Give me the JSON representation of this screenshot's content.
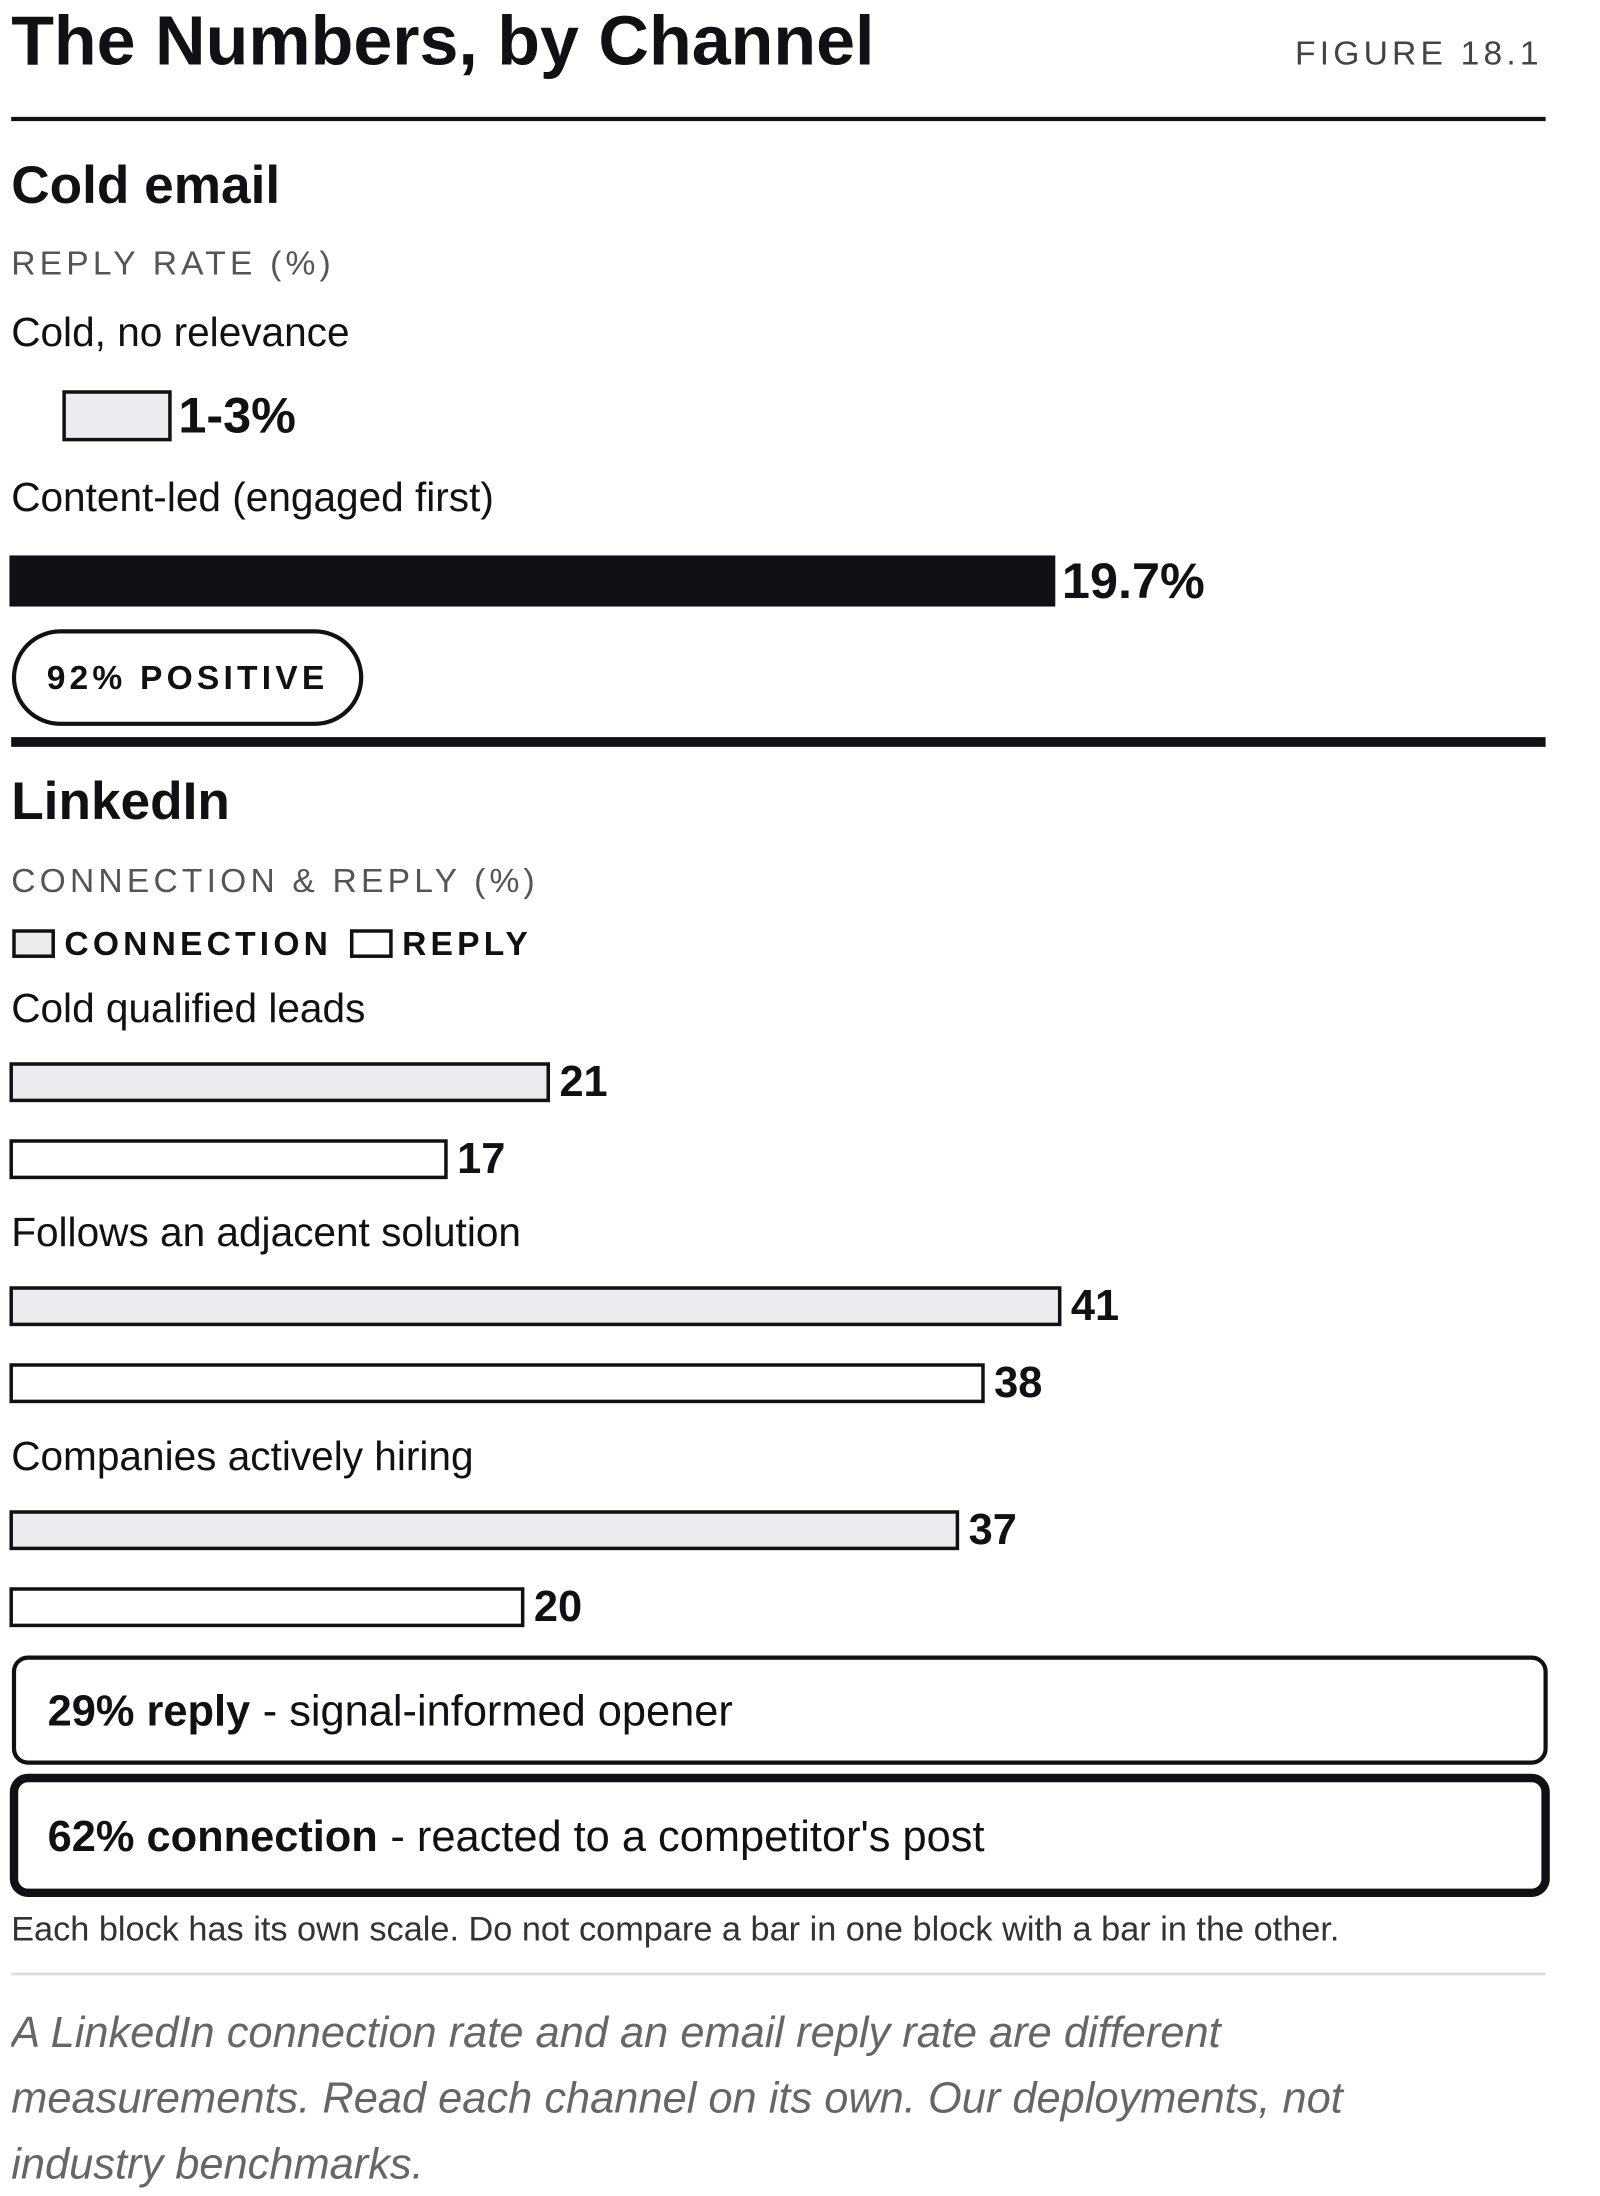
{
  "title": "The Numbers, by Channel",
  "figure_label": "FIGURE 18.1",
  "chart_data": [
    {
      "type": "bar",
      "orientation": "horizontal",
      "title": "Cold email",
      "subtitle": "REPLY RATE (%)",
      "categories": [
        "Cold, no relevance",
        "Content-led (engaged first)"
      ],
      "lows": [
        1,
        null
      ],
      "values": [
        3,
        19.7
      ],
      "value_labels": [
        "1-3%",
        "19.7%"
      ],
      "colors": [
        "#ecebee",
        "#111014"
      ],
      "xlim": [
        0,
        29
      ],
      "annotation": "92% POSITIVE"
    },
    {
      "type": "grouped-bar",
      "orientation": "horizontal",
      "title": "LinkedIn",
      "subtitle": "CONNECTION & REPLY (%)",
      "categories": [
        "Cold qualified leads",
        "Follows an adjacent solution",
        "Companies actively hiring"
      ],
      "series": [
        {
          "name": "CONNECTION",
          "color": "#ecebee",
          "values": [
            21,
            41,
            37
          ]
        },
        {
          "name": "REPLY",
          "color": "#ffffff",
          "values": [
            17,
            38,
            20
          ]
        }
      ],
      "xlim": [
        0,
        60
      ],
      "annotations": [
        {
          "bold": "29% reply",
          "text": "- signal-informed opener"
        },
        {
          "bold": "62% connection",
          "text": "- reacted to a competitor's post"
        }
      ]
    }
  ],
  "note": "Each block has its own scale. Do not compare a bar in one block with a bar in the other.",
  "caption": "A LinkedIn connection rate and an email reply rate are different measurements. Read each channel on its own. Our deployments, not industry benchmarks."
}
